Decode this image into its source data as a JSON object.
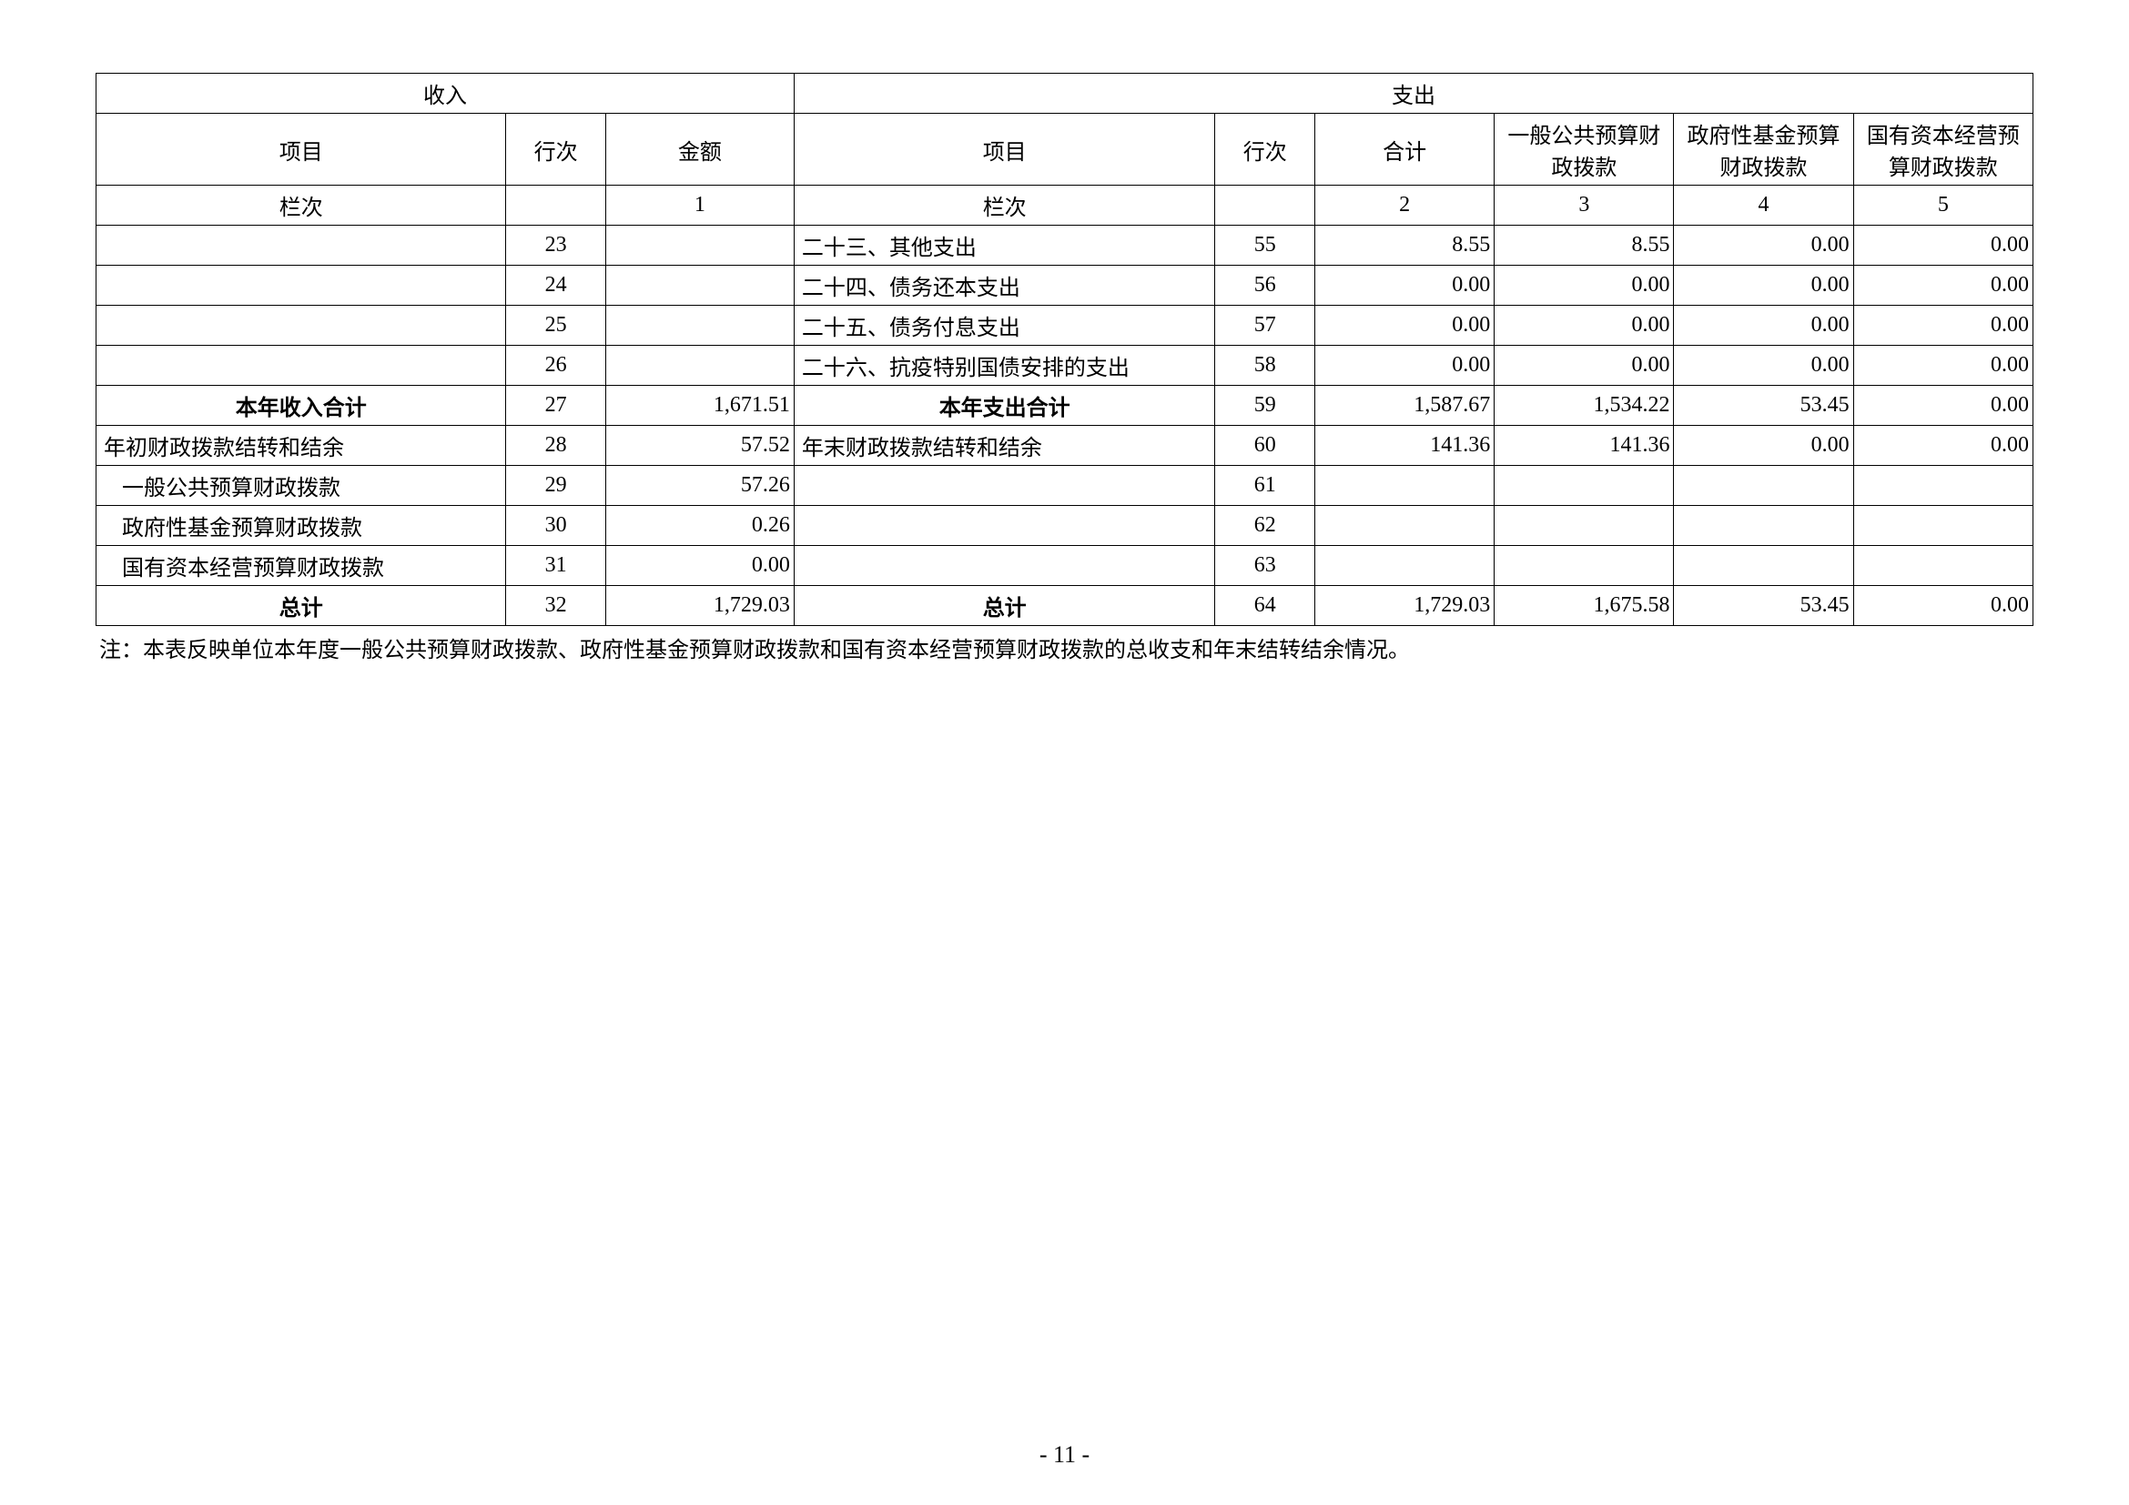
{
  "headers": {
    "income": "收入",
    "expenditure": "支出",
    "item": "项目",
    "row": "行次",
    "amount": "金额",
    "total": "合计",
    "general_budget": "一般公共预算财政拨款",
    "gov_fund": "政府性基金预算财政拨款",
    "state_capital": "国有资本经营预算财政拨款",
    "col_label": "栏次",
    "col_nums": [
      "1",
      "2",
      "3",
      "4",
      "5"
    ]
  },
  "rows": [
    {
      "l_item": "",
      "l_row": "23",
      "l_amt": "",
      "r_item": "二十三、其他支出",
      "r_row": "55",
      "c2": "8.55",
      "c3": "8.55",
      "c4": "0.00",
      "c5": "0.00",
      "bold": false
    },
    {
      "l_item": "",
      "l_row": "24",
      "l_amt": "",
      "r_item": "二十四、债务还本支出",
      "r_row": "56",
      "c2": "0.00",
      "c3": "0.00",
      "c4": "0.00",
      "c5": "0.00",
      "bold": false
    },
    {
      "l_item": "",
      "l_row": "25",
      "l_amt": "",
      "r_item": "二十五、债务付息支出",
      "r_row": "57",
      "c2": "0.00",
      "c3": "0.00",
      "c4": "0.00",
      "c5": "0.00",
      "bold": false
    },
    {
      "l_item": "",
      "l_row": "26",
      "l_amt": "",
      "r_item": "二十六、抗疫特别国债安排的支出",
      "r_row": "58",
      "c2": "0.00",
      "c3": "0.00",
      "c4": "0.00",
      "c5": "0.00",
      "bold": false
    },
    {
      "l_item": "本年收入合计",
      "l_row": "27",
      "l_amt": "1,671.51",
      "r_item": "本年支出合计",
      "r_row": "59",
      "c2": "1,587.67",
      "c3": "1,534.22",
      "c4": "53.45",
      "c5": "0.00",
      "bold": true,
      "l_center": true,
      "r_center": true
    },
    {
      "l_item": "年初财政拨款结转和结余",
      "l_row": "28",
      "l_amt": "57.52",
      "r_item": "年末财政拨款结转和结余",
      "r_row": "60",
      "c2": "141.36",
      "c3": "141.36",
      "c4": "0.00",
      "c5": "0.00",
      "bold": false
    },
    {
      "l_item": "  一般公共预算财政拨款",
      "l_row": "29",
      "l_amt": "57.26",
      "r_item": "",
      "r_row": "61",
      "c2": "",
      "c3": "",
      "c4": "",
      "c5": "",
      "bold": false,
      "indent": true
    },
    {
      "l_item": "  政府性基金预算财政拨款",
      "l_row": "30",
      "l_amt": "0.26",
      "r_item": "",
      "r_row": "62",
      "c2": "",
      "c3": "",
      "c4": "",
      "c5": "",
      "bold": false,
      "indent": true
    },
    {
      "l_item": "  国有资本经营预算财政拨款",
      "l_row": "31",
      "l_amt": "0.00",
      "r_item": "",
      "r_row": "63",
      "c2": "",
      "c3": "",
      "c4": "",
      "c5": "",
      "bold": false,
      "indent": true
    },
    {
      "l_item": "总计",
      "l_row": "32",
      "l_amt": "1,729.03",
      "r_item": "总计",
      "r_row": "64",
      "c2": "1,729.03",
      "c3": "1,675.58",
      "c4": "53.45",
      "c5": "0.00",
      "bold": true,
      "l_center": true,
      "r_center": true
    }
  ],
  "note": "注：本表反映单位本年度一般公共预算财政拨款、政府性基金预算财政拨款和国有资本经营预算财政拨款的总收支和年末结转结余情况。",
  "page_number": "- 11 -"
}
